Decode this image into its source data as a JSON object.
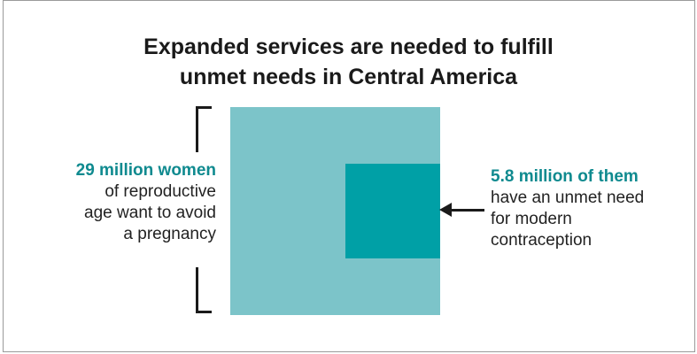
{
  "title": {
    "line1": "Expanded services are needed to fulfill",
    "line2": "unmet needs in Central America"
  },
  "colors": {
    "outer_square": "#7cc4c9",
    "inner_square": "#00a0a6",
    "highlight_text": "#0f8a8f",
    "body_text": "#222222"
  },
  "left_callout": {
    "headline": "29 million women",
    "lines": [
      "of reproductive",
      "age want to avoid",
      "a pregnancy"
    ]
  },
  "right_callout": {
    "headline": "5.8 million of them",
    "lines": [
      "have an unmet need",
      "for modern",
      "contraception"
    ]
  },
  "diagram": {
    "total_women_millions": 29,
    "unmet_need_millions": 5.8
  }
}
